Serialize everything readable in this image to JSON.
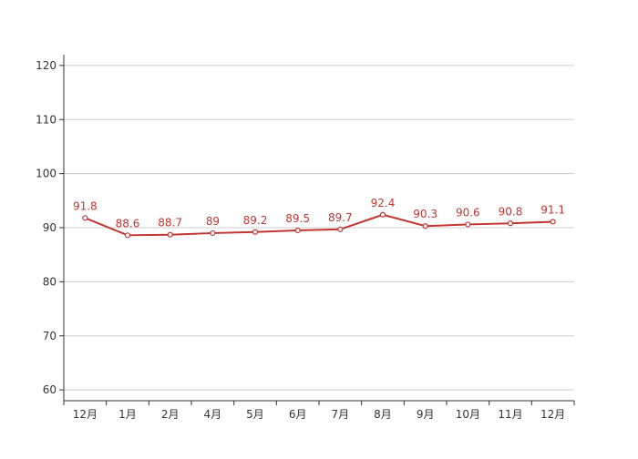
{
  "colors": {
    "series": "#c23531",
    "grid": "#cccccc",
    "axis": "#333333",
    "background": "#ffffff"
  },
  "chart_data": {
    "type": "line",
    "title": "",
    "xlabel": "",
    "ylabel": "",
    "categories": [
      "12月",
      "1月",
      "2月",
      "4月",
      "5月",
      "6月",
      "7月",
      "8月",
      "9月",
      "10月",
      "11月",
      "12月"
    ],
    "series": [
      {
        "values": [
          91.8,
          88.6,
          88.7,
          89,
          89.2,
          89.5,
          89.7,
          92.4,
          90.3,
          90.6,
          90.8,
          91.1
        ],
        "color": "#c23531"
      }
    ],
    "ylim": [
      58,
      122
    ],
    "yticks": [
      60,
      70,
      80,
      90,
      100,
      110,
      120
    ],
    "grid": true,
    "data_labels": true,
    "legend": "none"
  }
}
